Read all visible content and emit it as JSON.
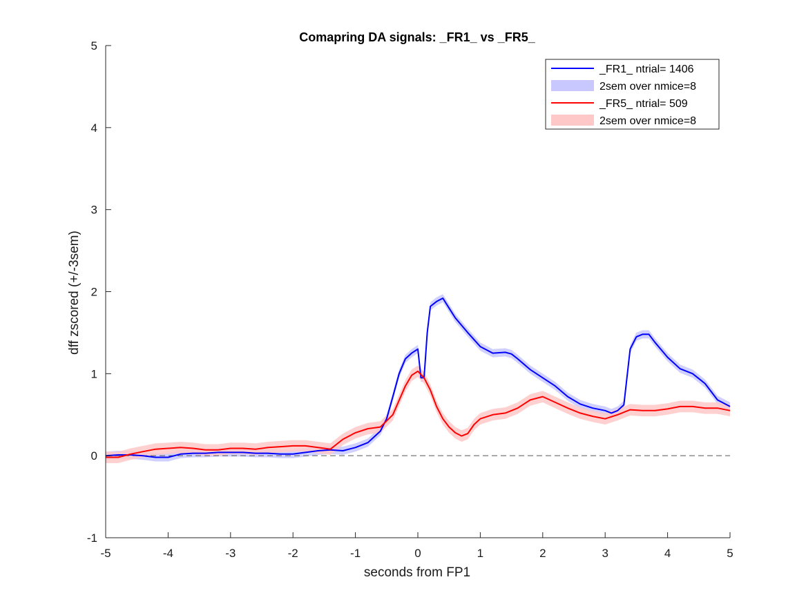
{
  "chart_data": {
    "type": "line",
    "title": "Comapring DA signals: _FR1_ vs _FR5_",
    "xlabel": "seconds from FP1",
    "ylabel": "dff zscored (+/-3sem)",
    "xlim": [
      -5,
      5
    ],
    "ylim": [
      -1,
      5
    ],
    "x_ticks": [
      "-5",
      "-4",
      "-3",
      "-2",
      "-1",
      "0",
      "1",
      "2",
      "3",
      "4",
      "5"
    ],
    "y_ticks": [
      "-1",
      "0",
      "1",
      "2",
      "3",
      "4",
      "5"
    ],
    "grid": false,
    "legend_position": "top-right",
    "legend": [
      {
        "label": "_FR1_ ntrial= 1406",
        "kind": "line",
        "color": "#0000ff"
      },
      {
        "label": "2sem over nmice=8",
        "kind": "band",
        "color": "#c8c8ff"
      },
      {
        "label": "_FR5_ ntrial= 509",
        "kind": "line",
        "color": "#ff0000"
      },
      {
        "label": "2sem over nmice=8",
        "kind": "band",
        "color": "#ffc8c8"
      }
    ],
    "reference_line": {
      "y": 0,
      "style": "dashed",
      "color": "#555555"
    },
    "series": [
      {
        "name": "_FR1_ ntrial= 1406",
        "color": "#0000ff",
        "band_color": "#c8c8ff",
        "sem": 0.05,
        "x": [
          -5,
          -4.8,
          -4.6,
          -4.4,
          -4.2,
          -4,
          -3.8,
          -3.6,
          -3.4,
          -3.2,
          -3,
          -2.8,
          -2.6,
          -2.4,
          -2.2,
          -2,
          -1.8,
          -1.6,
          -1.4,
          -1.2,
          -1,
          -0.8,
          -0.6,
          -0.5,
          -0.4,
          -0.3,
          -0.2,
          -0.1,
          0,
          0.05,
          0.1,
          0.15,
          0.2,
          0.3,
          0.4,
          0.5,
          0.6,
          0.8,
          1,
          1.2,
          1.4,
          1.5,
          1.6,
          1.8,
          2,
          2.2,
          2.4,
          2.6,
          2.8,
          3,
          3.1,
          3.2,
          3.3,
          3.4,
          3.5,
          3.6,
          3.7,
          3.8,
          4,
          4.2,
          4.4,
          4.6,
          4.8,
          5
        ],
        "y": [
          0,
          0.01,
          0.01,
          0,
          -0.02,
          -0.02,
          0.02,
          0.03,
          0.03,
          0.04,
          0.04,
          0.04,
          0.03,
          0.03,
          0.02,
          0.02,
          0.04,
          0.06,
          0.07,
          0.06,
          0.1,
          0.16,
          0.3,
          0.45,
          0.72,
          1.0,
          1.18,
          1.25,
          1.3,
          0.95,
          0.95,
          1.5,
          1.82,
          1.88,
          1.92,
          1.8,
          1.68,
          1.5,
          1.33,
          1.25,
          1.26,
          1.24,
          1.18,
          1.05,
          0.95,
          0.85,
          0.72,
          0.63,
          0.58,
          0.55,
          0.52,
          0.55,
          0.62,
          1.3,
          1.45,
          1.48,
          1.48,
          1.38,
          1.2,
          1.06,
          1.0,
          0.88,
          0.68,
          0.6
        ]
      },
      {
        "name": "_FR5_ ntrial= 509",
        "color": "#ff0000",
        "band_color": "#ffc8c8",
        "sem": 0.07,
        "x": [
          -5,
          -4.8,
          -4.6,
          -4.4,
          -4.2,
          -4,
          -3.8,
          -3.6,
          -3.4,
          -3.2,
          -3,
          -2.8,
          -2.6,
          -2.4,
          -2.2,
          -2,
          -1.8,
          -1.6,
          -1.4,
          -1.2,
          -1,
          -0.8,
          -0.6,
          -0.4,
          -0.2,
          -0.1,
          0,
          0.1,
          0.2,
          0.3,
          0.4,
          0.5,
          0.6,
          0.7,
          0.8,
          0.9,
          1,
          1.2,
          1.4,
          1.6,
          1.8,
          2,
          2.2,
          2.4,
          2.6,
          2.8,
          3,
          3.2,
          3.4,
          3.6,
          3.8,
          4,
          4.2,
          4.4,
          4.6,
          4.8,
          5
        ],
        "y": [
          -0.02,
          -0.02,
          0.02,
          0.05,
          0.08,
          0.09,
          0.1,
          0.09,
          0.07,
          0.07,
          0.09,
          0.09,
          0.08,
          0.1,
          0.11,
          0.12,
          0.12,
          0.1,
          0.08,
          0.2,
          0.28,
          0.33,
          0.35,
          0.5,
          0.85,
          0.98,
          1.03,
          0.95,
          0.8,
          0.6,
          0.45,
          0.35,
          0.28,
          0.24,
          0.27,
          0.38,
          0.45,
          0.5,
          0.52,
          0.58,
          0.68,
          0.72,
          0.65,
          0.58,
          0.52,
          0.48,
          0.45,
          0.5,
          0.56,
          0.55,
          0.55,
          0.57,
          0.6,
          0.6,
          0.58,
          0.58,
          0.55
        ]
      }
    ]
  }
}
